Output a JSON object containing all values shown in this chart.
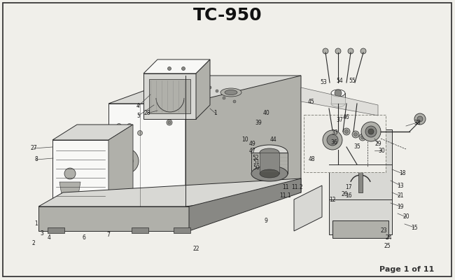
{
  "title": "TC-950",
  "page_text": "Page 1 of 11",
  "bg_color": "#f0efea",
  "border_color": "#444444",
  "title_fontsize": 18,
  "page_fontsize": 8,
  "fig_width": 6.5,
  "fig_height": 4.0,
  "dpi": 100,
  "lc": "#2a2a2a",
  "light_gray": "#d8d8d4",
  "mid_gray": "#b0b0aa",
  "dark_gray": "#888884",
  "white_fill": "#f8f8f6",
  "hatch_color": "#666660"
}
